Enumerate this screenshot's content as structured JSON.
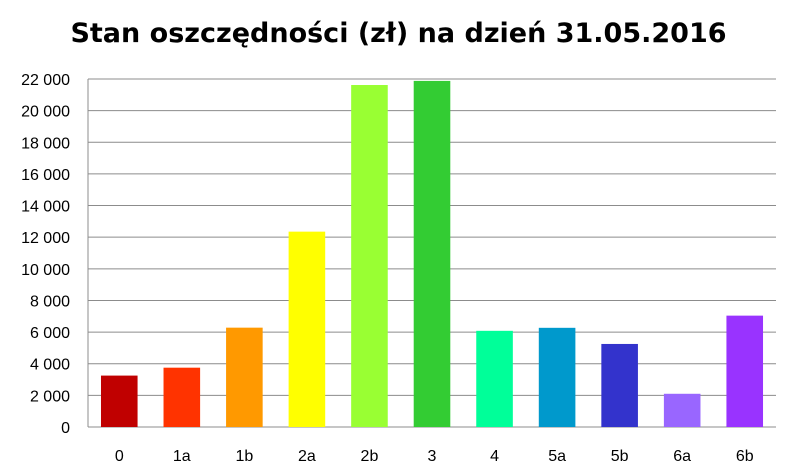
{
  "chart_data": {
    "type": "bar",
    "title": "Stan oszczędności (zł) na dzień 31.05.2016",
    "xlabel": "",
    "ylabel": "",
    "categories": [
      "0",
      "1a",
      "1b",
      "2a",
      "2b",
      "3",
      "4",
      "5a",
      "5b",
      "6a",
      "6b"
    ],
    "values": [
      3250,
      3750,
      6280,
      12350,
      21620,
      21880,
      6080,
      6270,
      5250,
      2100,
      7040
    ],
    "colors": [
      "#C00000",
      "#FF3300",
      "#FF9900",
      "#FFFF00",
      "#99FF33",
      "#33CC33",
      "#00FF99",
      "#0099CC",
      "#3333CC",
      "#9966FF",
      "#9933FF"
    ],
    "ylim": [
      0,
      22000
    ],
    "yticks": [
      0,
      2000,
      4000,
      6000,
      8000,
      10000,
      12000,
      14000,
      16000,
      18000,
      20000,
      22000
    ],
    "ytick_labels": [
      "0",
      "2 000",
      "4 000",
      "6 000",
      "8 000",
      "10 000",
      "12 000",
      "14 000",
      "16 000",
      "18 000",
      "20 000",
      "22 000"
    ],
    "grid": true,
    "legend": "none"
  }
}
